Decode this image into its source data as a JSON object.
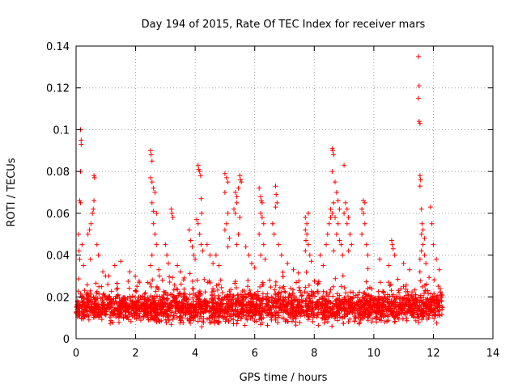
{
  "chart_data": {
    "type": "scatter",
    "title": "Day 194 of 2015, Rate Of TEC Index for receiver mars",
    "xlabel": "GPS time / hours",
    "ylabel": "ROTI / TECUs",
    "xlim": [
      0,
      14
    ],
    "ylim": [
      0,
      0.14
    ],
    "x_ticks": [
      0,
      2,
      4,
      6,
      8,
      10,
      12,
      14
    ],
    "x_tick_labels": [
      "0",
      "2",
      "4",
      "6",
      "8",
      "10",
      "12",
      "14"
    ],
    "y_ticks": [
      0,
      0.02,
      0.04,
      0.06,
      0.08,
      0.1,
      0.12,
      0.14
    ],
    "y_tick_labels": [
      "0",
      "0.02",
      "0.04",
      "0.06",
      "0.08",
      "0.1",
      "0.12",
      "0.14"
    ],
    "grid": true,
    "marker": "plus",
    "series_color": "#ff0000",
    "data_extent_x": [
      0,
      12.3
    ],
    "baseline_band": {
      "low": 0.005,
      "high": 0.025
    },
    "series": [
      {
        "name": "ROTI",
        "points": [
          [
            0.15,
            0.1
          ],
          [
            0.17,
            0.095
          ],
          [
            0.17,
            0.093
          ],
          [
            0.15,
            0.08
          ],
          [
            0.12,
            0.066
          ],
          [
            0.15,
            0.065
          ],
          [
            0.08,
            0.05
          ],
          [
            0.1,
            0.042
          ],
          [
            0.12,
            0.038
          ],
          [
            0.2,
            0.045
          ],
          [
            0.25,
            0.035
          ],
          [
            0.4,
            0.05
          ],
          [
            0.45,
            0.052
          ],
          [
            0.5,
            0.055
          ],
          [
            0.55,
            0.06
          ],
          [
            0.6,
            0.078
          ],
          [
            0.62,
            0.077
          ],
          [
            0.6,
            0.066
          ],
          [
            0.58,
            0.062
          ],
          [
            0.7,
            0.045
          ],
          [
            0.75,
            0.04
          ],
          [
            0.48,
            0.038
          ],
          [
            0.9,
            0.032
          ],
          [
            1.1,
            0.03
          ],
          [
            1.3,
            0.035
          ],
          [
            1.5,
            0.037
          ],
          [
            1.8,
            0.032
          ],
          [
            2.5,
            0.09
          ],
          [
            2.52,
            0.088
          ],
          [
            2.55,
            0.085
          ],
          [
            2.5,
            0.077
          ],
          [
            2.55,
            0.075
          ],
          [
            2.6,
            0.072
          ],
          [
            2.65,
            0.07
          ],
          [
            2.55,
            0.065
          ],
          [
            2.6,
            0.061
          ],
          [
            2.7,
            0.06
          ],
          [
            2.6,
            0.055
          ],
          [
            2.65,
            0.05
          ],
          [
            2.7,
            0.045
          ],
          [
            2.55,
            0.04
          ],
          [
            2.5,
            0.035
          ],
          [
            2.8,
            0.03
          ],
          [
            3.0,
            0.045
          ],
          [
            3.05,
            0.04
          ],
          [
            3.1,
            0.036
          ],
          [
            3.2,
            0.062
          ],
          [
            3.22,
            0.06
          ],
          [
            3.25,
            0.058
          ],
          [
            3.4,
            0.035
          ],
          [
            3.5,
            0.032
          ],
          [
            3.8,
            0.052
          ],
          [
            3.85,
            0.047
          ],
          [
            3.9,
            0.044
          ],
          [
            3.95,
            0.04
          ],
          [
            4.0,
            0.038
          ],
          [
            4.1,
            0.083
          ],
          [
            4.12,
            0.081
          ],
          [
            4.15,
            0.08
          ],
          [
            4.18,
            0.078
          ],
          [
            4.2,
            0.067
          ],
          [
            4.22,
            0.06
          ],
          [
            4.05,
            0.057
          ],
          [
            4.1,
            0.055
          ],
          [
            4.15,
            0.05
          ],
          [
            4.2,
            0.045
          ],
          [
            4.25,
            0.042
          ],
          [
            4.4,
            0.045
          ],
          [
            4.5,
            0.04
          ],
          [
            4.6,
            0.036
          ],
          [
            4.7,
            0.04
          ],
          [
            4.8,
            0.035
          ],
          [
            5.0,
            0.079
          ],
          [
            5.05,
            0.077
          ],
          [
            5.1,
            0.075
          ],
          [
            5.0,
            0.07
          ],
          [
            5.1,
            0.06
          ],
          [
            5.05,
            0.055
          ],
          [
            5.0,
            0.052
          ],
          [
            5.15,
            0.048
          ],
          [
            5.1,
            0.044
          ],
          [
            5.35,
            0.07
          ],
          [
            5.4,
            0.068
          ],
          [
            5.3,
            0.062
          ],
          [
            5.35,
            0.06
          ],
          [
            5.5,
            0.078
          ],
          [
            5.52,
            0.076
          ],
          [
            5.55,
            0.075
          ],
          [
            5.45,
            0.072
          ],
          [
            5.4,
            0.065
          ],
          [
            5.5,
            0.058
          ],
          [
            5.45,
            0.05
          ],
          [
            5.4,
            0.045
          ],
          [
            5.7,
            0.044
          ],
          [
            5.8,
            0.04
          ],
          [
            5.9,
            0.036
          ],
          [
            6.0,
            0.034
          ],
          [
            6.15,
            0.072
          ],
          [
            6.2,
            0.068
          ],
          [
            6.22,
            0.066
          ],
          [
            6.25,
            0.065
          ],
          [
            6.2,
            0.06
          ],
          [
            6.25,
            0.058
          ],
          [
            6.3,
            0.055
          ],
          [
            6.15,
            0.05
          ],
          [
            6.3,
            0.045
          ],
          [
            6.2,
            0.04
          ],
          [
            6.35,
            0.038
          ],
          [
            6.7,
            0.073
          ],
          [
            6.72,
            0.069
          ],
          [
            6.75,
            0.065
          ],
          [
            6.7,
            0.063
          ],
          [
            6.6,
            0.055
          ],
          [
            6.65,
            0.05
          ],
          [
            6.8,
            0.045
          ],
          [
            6.9,
            0.04
          ],
          [
            7.1,
            0.036
          ],
          [
            7.3,
            0.033
          ],
          [
            7.7,
            0.058
          ],
          [
            7.75,
            0.055
          ],
          [
            7.8,
            0.06
          ],
          [
            7.7,
            0.052
          ],
          [
            7.75,
            0.05
          ],
          [
            7.72,
            0.047
          ],
          [
            7.8,
            0.045
          ],
          [
            7.7,
            0.042
          ],
          [
            7.85,
            0.04
          ],
          [
            7.9,
            0.037
          ],
          [
            8.2,
            0.04
          ],
          [
            8.3,
            0.035
          ],
          [
            8.4,
            0.045
          ],
          [
            8.45,
            0.05
          ],
          [
            8.5,
            0.055
          ],
          [
            8.55,
            0.058
          ],
          [
            8.6,
            0.06
          ],
          [
            8.55,
            0.062
          ],
          [
            8.65,
            0.065
          ],
          [
            8.6,
            0.091
          ],
          [
            8.62,
            0.09
          ],
          [
            8.65,
            0.088
          ],
          [
            8.6,
            0.08
          ],
          [
            8.7,
            0.075
          ],
          [
            8.75,
            0.07
          ],
          [
            8.8,
            0.066
          ],
          [
            8.85,
            0.062
          ],
          [
            8.7,
            0.058
          ],
          [
            8.8,
            0.055
          ],
          [
            8.75,
            0.05
          ],
          [
            8.85,
            0.047
          ],
          [
            8.9,
            0.045
          ],
          [
            8.65,
            0.042
          ],
          [
            8.95,
            0.04
          ],
          [
            9.0,
            0.083
          ],
          [
            9.05,
            0.065
          ],
          [
            9.1,
            0.062
          ],
          [
            9.0,
            0.06
          ],
          [
            9.15,
            0.058
          ],
          [
            9.1,
            0.055
          ],
          [
            9.2,
            0.05
          ],
          [
            9.25,
            0.045
          ],
          [
            9.15,
            0.042
          ],
          [
            9.65,
            0.066
          ],
          [
            9.7,
            0.065
          ],
          [
            9.6,
            0.062
          ],
          [
            9.65,
            0.06
          ],
          [
            9.7,
            0.055
          ],
          [
            9.6,
            0.05
          ],
          [
            9.75,
            0.045
          ],
          [
            9.8,
            0.04
          ],
          [
            10.2,
            0.038
          ],
          [
            10.5,
            0.035
          ],
          [
            10.6,
            0.047
          ],
          [
            10.62,
            0.045
          ],
          [
            10.65,
            0.043
          ],
          [
            10.7,
            0.04
          ],
          [
            11.0,
            0.036
          ],
          [
            11.2,
            0.033
          ],
          [
            11.5,
            0.135
          ],
          [
            11.52,
            0.121
          ],
          [
            11.5,
            0.115
          ],
          [
            11.52,
            0.104
          ],
          [
            11.55,
            0.103
          ],
          [
            11.55,
            0.078
          ],
          [
            11.57,
            0.076
          ],
          [
            11.55,
            0.073
          ],
          [
            11.6,
            0.062
          ],
          [
            11.62,
            0.055
          ],
          [
            11.65,
            0.052
          ],
          [
            11.6,
            0.05
          ],
          [
            11.7,
            0.048
          ],
          [
            11.65,
            0.045
          ],
          [
            11.6,
            0.042
          ],
          [
            11.7,
            0.04
          ],
          [
            11.55,
            0.038
          ],
          [
            11.75,
            0.036
          ],
          [
            11.9,
            0.063
          ],
          [
            11.95,
            0.055
          ],
          [
            12.0,
            0.045
          ],
          [
            12.1,
            0.038
          ],
          [
            12.2,
            0.033
          ]
        ]
      }
    ]
  }
}
